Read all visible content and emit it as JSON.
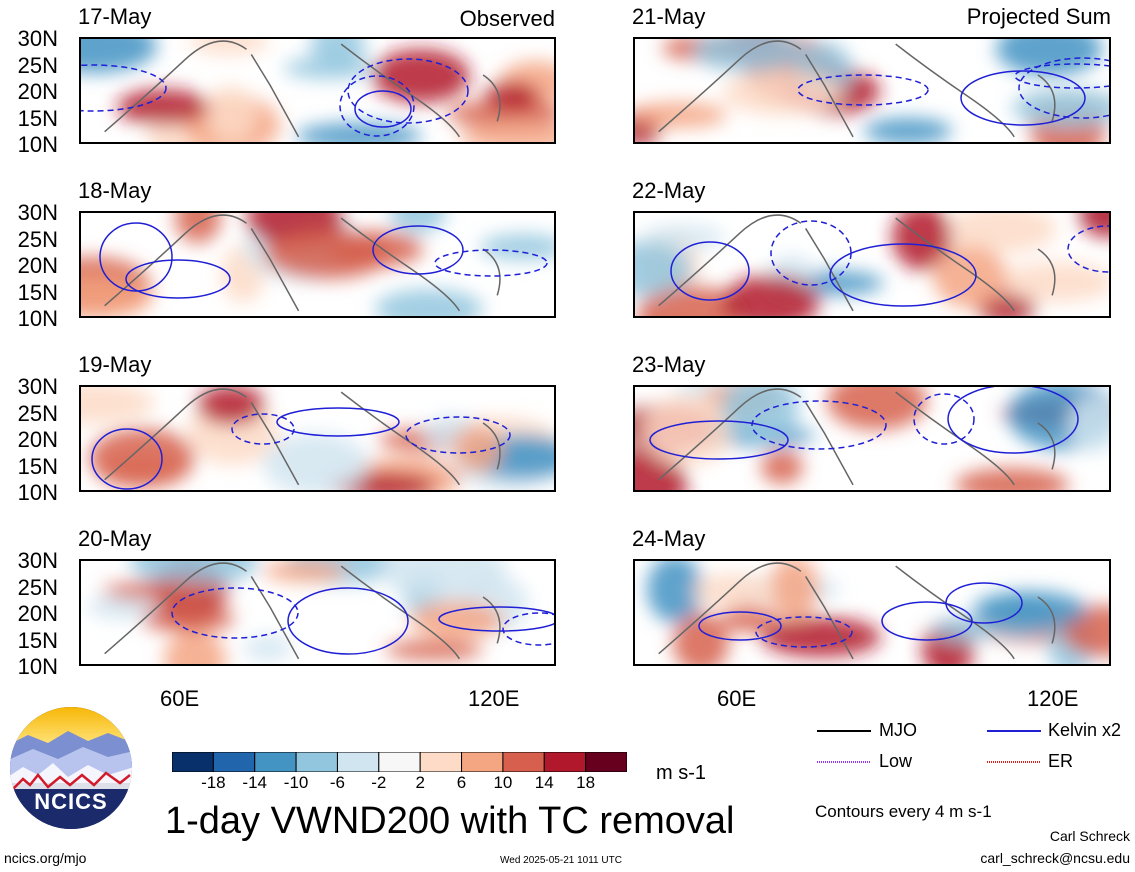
{
  "left_header": "Observed",
  "right_header": "Projected Sum",
  "lat_labels": [
    "30N",
    "25N",
    "20N",
    "15N",
    "10N"
  ],
  "lon_labels": [
    "60E",
    "120E"
  ],
  "left_panels": [
    {
      "date": "17-May"
    },
    {
      "date": "18-May"
    },
    {
      "date": "19-May"
    },
    {
      "date": "20-May"
    }
  ],
  "right_panels": [
    {
      "date": "21-May"
    },
    {
      "date": "22-May"
    },
    {
      "date": "23-May"
    },
    {
      "date": "24-May"
    }
  ],
  "colorbar": {
    "labels": [
      "-18",
      "-14",
      "-10",
      "-6",
      "-2",
      "2",
      "6",
      "10",
      "14",
      "18"
    ],
    "colors": [
      "#08306b",
      "#2166ac",
      "#4393c3",
      "#92c5de",
      "#d1e5f0",
      "#f7f7f7",
      "#fddbc7",
      "#f4a582",
      "#d6604d",
      "#b2182b",
      "#67001f"
    ],
    "units": "m s-1"
  },
  "title": "1-day VWND200 with TC removal",
  "legend": {
    "items": [
      {
        "label": "MJO",
        "color": "#000000"
      },
      {
        "label": "Kelvin x2",
        "color": "#1f1fd6"
      },
      {
        "label": "Low",
        "color": "#9b30ff"
      },
      {
        "label": "ER",
        "color": "#e0201b"
      }
    ],
    "contours_note": "Contours every 4 m s-1"
  },
  "logo_text": "NCICS",
  "footer": {
    "url": "ncics.org/mjo",
    "timestamp": "Wed 2025-05-21 1011 UTC",
    "author": "Carl Schreck",
    "email": "carl_schreck@ncsu.edu"
  }
}
